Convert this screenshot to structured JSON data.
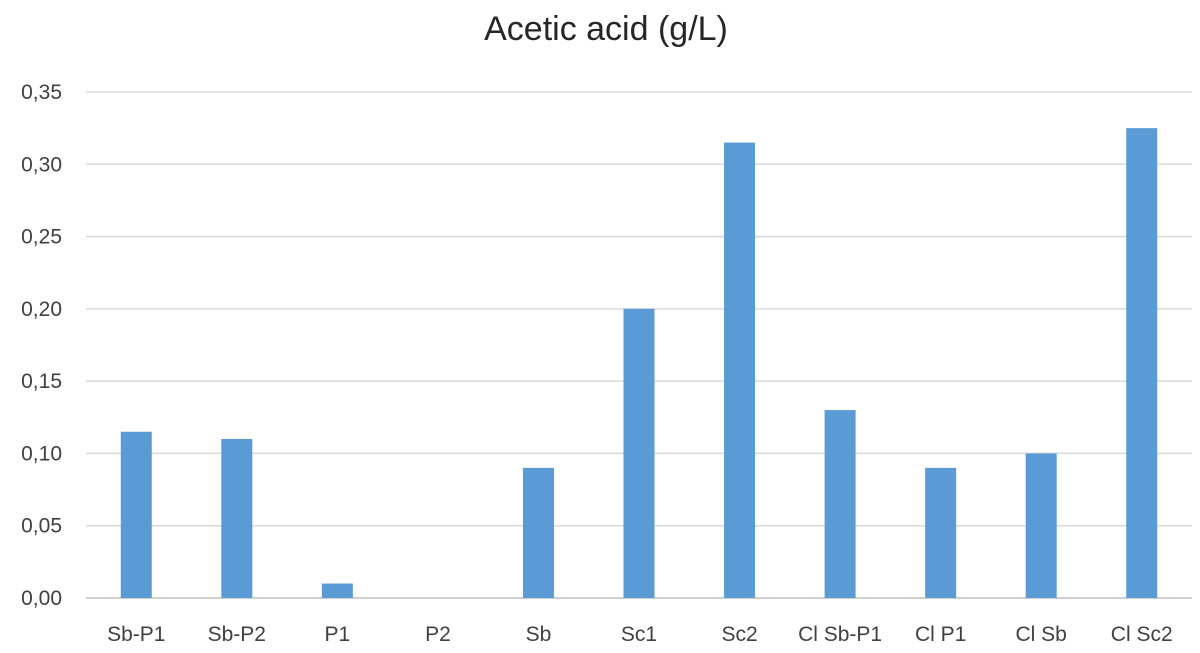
{
  "chart_data": {
    "type": "bar",
    "title": "Acetic acid (g/L)",
    "xlabel": "",
    "ylabel": "",
    "categories": [
      "Sb-P1",
      "Sb-P2",
      "P1",
      "P2",
      "Sb",
      "Sc1",
      "Sc2",
      "Cl Sb-P1",
      "Cl P1",
      "Cl Sb",
      "Cl Sc2"
    ],
    "values": [
      0.115,
      0.11,
      0.01,
      0.0,
      0.09,
      0.2,
      0.315,
      0.13,
      0.09,
      0.1,
      0.325
    ],
    "ylim": [
      0,
      0.35
    ],
    "yticks": [
      0.0,
      0.05,
      0.1,
      0.15,
      0.2,
      0.25,
      0.3,
      0.35
    ],
    "ytick_labels": [
      "0,00",
      "0,05",
      "0,10",
      "0,15",
      "0,20",
      "0,25",
      "0,30",
      "0,35"
    ],
    "grid": true,
    "legend": "none",
    "bar_color": "#5b9bd5"
  }
}
